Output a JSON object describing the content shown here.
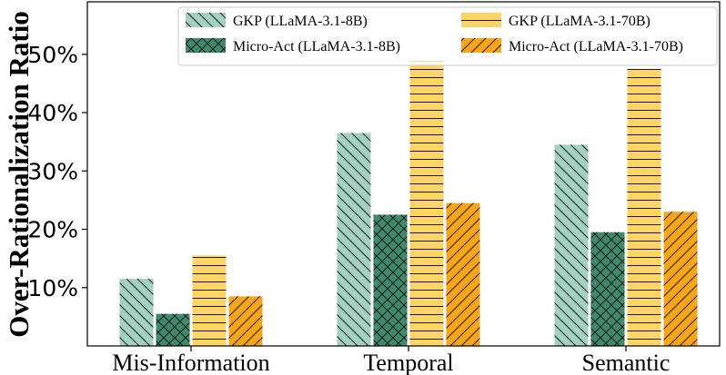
{
  "chart_data": {
    "type": "bar",
    "title": "",
    "xlabel": "",
    "ylabel": "Over-Rationalization Ratio",
    "ylim": [
      0,
      59
    ],
    "yticks": [
      10,
      20,
      30,
      40,
      50
    ],
    "ytick_labels": [
      "10%",
      "20%",
      "30%",
      "40%",
      "50%"
    ],
    "grid": false,
    "legend_position": "top-right",
    "categories": [
      "Mis-Information",
      "Temporal",
      "Semantic"
    ],
    "series": [
      {
        "name": "GKP (LLaMA-3.1-8B)",
        "values": [
          11.5,
          36.5,
          34.5
        ],
        "color": "#a3d1c1",
        "hatch": "backslash"
      },
      {
        "name": "Micro-Act (LLaMA-3.1-8B)",
        "values": [
          5.5,
          22.5,
          19.5
        ],
        "color": "#3f8a6e",
        "hatch": "cross"
      },
      {
        "name": "GKP (LLaMA-3.1-70B)",
        "values": [
          15.5,
          49.0,
          47.5
        ],
        "color": "#fdd466",
        "hatch": "horizontal"
      },
      {
        "name": "Micro-Act (LLaMA-3.1-70B)",
        "values": [
          8.5,
          24.5,
          23.0
        ],
        "color": "#f8a51c",
        "hatch": "slash"
      }
    ]
  }
}
